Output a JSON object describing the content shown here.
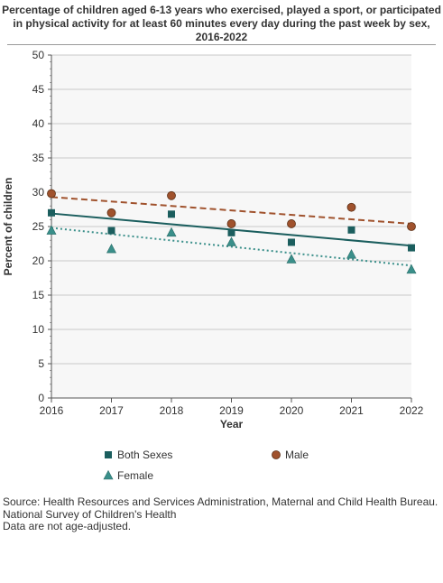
{
  "title": "Percentage of children aged 6-13 years who exercised, played a sport, or participated in physical activity for at least 60 minutes every day during the past week by sex, 2016-2022",
  "source_lines": [
    "Source: Health Resources and Services Administration, Maternal and Child Health Bureau.",
    "National Survey of Children's Health",
    "Data are not age-adjusted."
  ],
  "chart_data": {
    "type": "scatter",
    "title": "Percentage of children aged 6-13 years who exercised, played a sport, or participated in physical activity for at least 60 minutes every day during the past week by sex, 2016-2022",
    "xlabel": "Year",
    "ylabel": "Percent of children",
    "x": [
      2016,
      2017,
      2018,
      2019,
      2020,
      2021,
      2022
    ],
    "xlim": [
      2016,
      2022
    ],
    "ylim": [
      0,
      50
    ],
    "y_ticks": [
      0,
      5,
      10,
      15,
      20,
      25,
      30,
      35,
      40,
      45,
      50
    ],
    "grid": true,
    "legend_position": "bottom",
    "series": [
      {
        "name": "Both Sexes",
        "marker": "square",
        "color": "#1b5e5e",
        "values": [
          27.0,
          24.4,
          26.8,
          24.1,
          22.7,
          24.5,
          21.9
        ],
        "trend": [
          26.9,
          22.2
        ],
        "trend_style": "solid"
      },
      {
        "name": "Male",
        "marker": "circle",
        "color": "#a0522d",
        "values": [
          29.8,
          27.0,
          29.5,
          25.4,
          25.4,
          27.8,
          25.0
        ],
        "trend": [
          29.3,
          25.4
        ],
        "trend_style": "dashed"
      },
      {
        "name": "Female",
        "marker": "triangle",
        "color": "#3a8f8a",
        "values": [
          24.4,
          21.7,
          24.1,
          22.7,
          20.2,
          20.9,
          18.7
        ],
        "trend": [
          24.8,
          19.3
        ],
        "trend_style": "dotted"
      }
    ]
  }
}
